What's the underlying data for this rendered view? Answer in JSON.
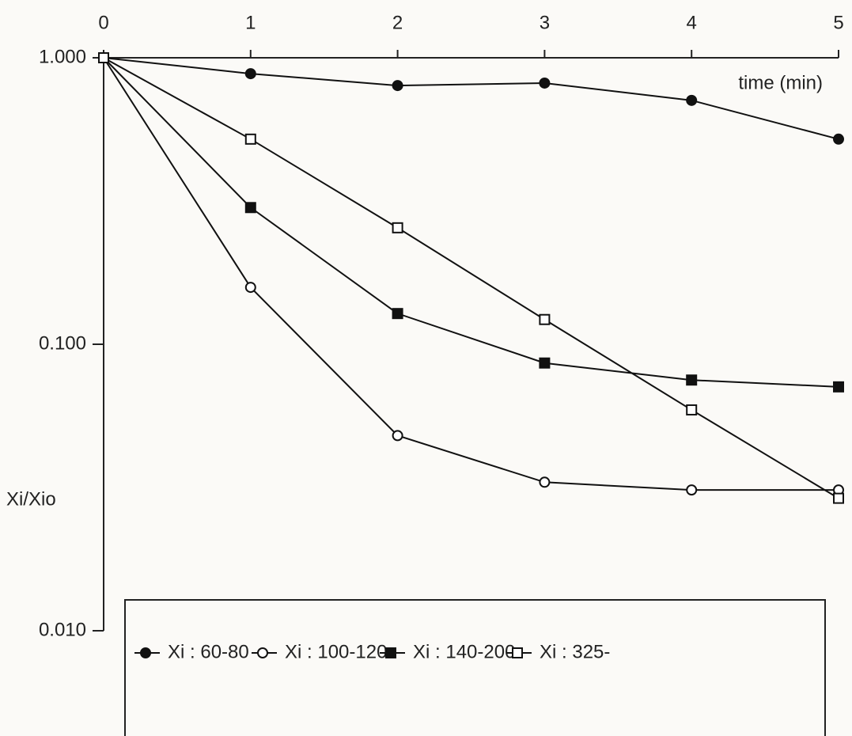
{
  "chart_data": {
    "type": "line",
    "x_label": "time (min)",
    "y_label": "Xi/Xio",
    "x": [
      0,
      1,
      2,
      3,
      4,
      5
    ],
    "xlim": [
      0,
      5
    ],
    "xticks": [
      0,
      1,
      2,
      3,
      4,
      5
    ],
    "ylim": [
      0.01,
      1
    ],
    "log_y": true,
    "yticks": [
      {
        "value": 1,
        "label": "1.000"
      },
      {
        "value": 0.1,
        "label": "0.100"
      },
      {
        "value": 0.01,
        "label": "0.010"
      }
    ],
    "grid": false,
    "series": [
      {
        "name": "Xi : 60-80",
        "color": "#111111",
        "marker": "circle",
        "filled": true,
        "values": [
          1.0,
          0.88,
          0.8,
          0.816,
          0.71,
          0.52
        ]
      },
      {
        "name": "Xi : 100-120",
        "color": "#111111",
        "marker": "circle",
        "filled": false,
        "values": [
          1.0,
          0.158,
          0.048,
          0.033,
          0.031,
          0.031
        ]
      },
      {
        "name": "Xi : 140-200",
        "color": "#111111",
        "marker": "square",
        "filled": true,
        "values": [
          1.0,
          0.3,
          0.128,
          0.086,
          0.075,
          0.071
        ]
      },
      {
        "name": "Xi : 325-",
        "color": "#111111",
        "marker": "square",
        "filled": false,
        "values": [
          1.0,
          0.52,
          0.255,
          0.122,
          0.059,
          0.029
        ]
      }
    ]
  }
}
